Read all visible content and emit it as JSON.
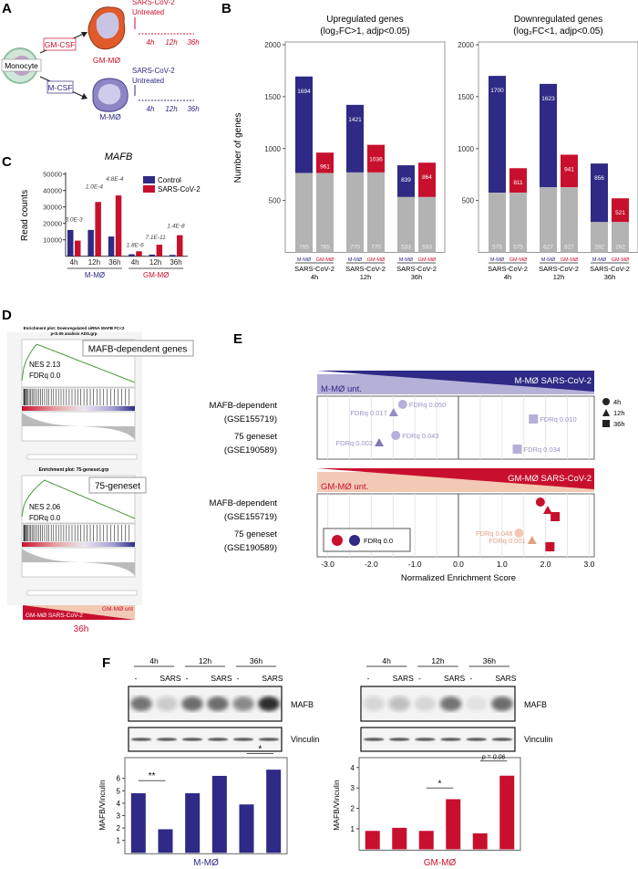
{
  "panel_labels": {
    "a": "A",
    "b": "B",
    "c": "C",
    "d": "D",
    "e": "E",
    "f": "F"
  },
  "colors": {
    "m_mo": "#2e2a85",
    "gm_mo": "#c8102e",
    "shared": "#b3b3b3",
    "m_light": "#b5b0d8",
    "gm_light": "#f2c9b3"
  },
  "panel_a": {
    "monocyte": "Monocyte",
    "gm_csf": "GM-CSF",
    "m_csf": "M-CSF",
    "gm_cell": "GM-MØ",
    "m_cell": "M-MØ",
    "treatment": "SARS-CoV-2",
    "untreated": "Untreated",
    "timepoints": [
      "4h",
      "12h",
      "36h"
    ]
  },
  "panel_d": {
    "plot1": {
      "title_line1": "Enrichment plot: Downregulated siRNA MAFB FC<2",
      "title_line2": "p<0.05 analisis ADS.grp",
      "box_label": "MAFB-dependent genes",
      "nes": "NES  2.13",
      "fdr": "FDRq 0.0"
    },
    "plot2": {
      "title_line1": "Enrichment plot: 75-geneset.grp",
      "box_label": "75-geneset",
      "nes": "NES  2.06",
      "fdr": "FDRq 0.0"
    },
    "gradient_left": "GM-MØ SARS-CoV-2",
    "gradient_right": "GM-MØ unt",
    "timepoint": "36h"
  },
  "chart_data": [
    {
      "id": "c",
      "type": "bar",
      "title": "MAFB",
      "ylabel": "Read counts",
      "ylim": [
        0,
        50000
      ],
      "yticks": [
        "10000",
        "20000",
        "30000",
        "40000",
        "50000"
      ],
      "groups": [
        {
          "cell": "M-MØ",
          "timepoints": [
            "4h",
            "12h",
            "36h"
          ]
        },
        {
          "cell": "GM-MØ",
          "timepoints": [
            "4h",
            "12h",
            "36h"
          ]
        }
      ],
      "series": [
        {
          "name": "Control",
          "color": "#2e2a85",
          "values": [
            16000,
            16000,
            12000,
            1200,
            1000,
            800
          ]
        },
        {
          "name": "SARS-CoV-2",
          "color": "#c8102e",
          "values": [
            9500,
            33000,
            37000,
            3000,
            7000,
            12800
          ]
        }
      ],
      "annotations": [
        "3.0E-3",
        "1.0E-4",
        "4.8E-4",
        "1.8E-6",
        "7.1E-11",
        "1.4E-8"
      ],
      "legend": "top-right"
    },
    {
      "id": "b_up",
      "type": "bar",
      "stacked": true,
      "title_line1": "Upregulated genes",
      "title_line2": "(log₂FC>1, adjp<0.05)",
      "ylabel": "Number of genes",
      "ylim": [
        0,
        2000
      ],
      "yticks": [
        "500",
        "1000",
        "1500",
        "2000"
      ],
      "categories": [
        "4h",
        "12h",
        "36h"
      ],
      "category_prefix": "SARS-CoV-2",
      "bar_labels": [
        "M-MØ",
        "GM-MØ"
      ],
      "m_mo_total": [
        1694,
        1421,
        839
      ],
      "gm_mo_total": [
        961,
        1036,
        864
      ],
      "shared": [
        765,
        770,
        533
      ]
    },
    {
      "id": "b_down",
      "type": "bar",
      "stacked": true,
      "title_line1": "Downregulated genes",
      "title_line2": "(log₂FC<1, adjp<0.05)",
      "ylim": [
        0,
        2000
      ],
      "yticks": [
        "500",
        "1000",
        "1500",
        "2000"
      ],
      "categories": [
        "4h",
        "12h",
        "36h"
      ],
      "category_prefix": "SARS-CoV-2",
      "bar_labels": [
        "M-MØ",
        "GM-MØ"
      ],
      "m_mo_total": [
        1700,
        1623,
        856
      ],
      "gm_mo_total": [
        811,
        941,
        521
      ],
      "shared": [
        575,
        627,
        292
      ]
    },
    {
      "id": "e",
      "type": "scatter",
      "xlabel": "Normalized Enrichment Score",
      "xlim": [
        -3.0,
        3.0
      ],
      "xticks": [
        "-3.0",
        "-2.0",
        "-1.0",
        "0.0",
        "1.0",
        "2.0",
        "3.0"
      ],
      "row_labels": [
        [
          "MAFB-dependent",
          "(GSE155719)"
        ],
        [
          "75 geneset",
          "(GSE190589)"
        ]
      ],
      "legend_shapes": [
        {
          "shape": "circle",
          "label": "4h"
        },
        {
          "shape": "triangle",
          "label": "12h"
        },
        {
          "shape": "square",
          "label": "36h"
        }
      ],
      "fdr_legend": "FDRq  0.0",
      "panels": [
        {
          "banner_left": "M-MØ unt.",
          "banner_right": "M-MØ SARS-CoV-2",
          "points": [
            {
              "row": 0,
              "time": "4h",
              "shape": "circle",
              "nes": -1.28,
              "fdr": "FDRq  0.050",
              "color": "#b5b0d8"
            },
            {
              "row": 0,
              "time": "12h",
              "shape": "triangle",
              "nes": -1.49,
              "fdr": "FDRq  0.017",
              "color": "#928cc4"
            },
            {
              "row": 0,
              "time": "36h",
              "shape": "square",
              "nes": 1.72,
              "fdr": "FDRq  0.010",
              "color": "#b5b0d8"
            },
            {
              "row": 1,
              "time": "4h",
              "shape": "circle",
              "nes": -1.44,
              "fdr": "FDRq  0.043",
              "color": "#b5b0d8"
            },
            {
              "row": 1,
              "time": "12h",
              "shape": "triangle",
              "nes": -1.82,
              "fdr": "FDRq  0.002",
              "color": "#7f79b6"
            },
            {
              "row": 1,
              "time": "36h",
              "shape": "square",
              "nes": 1.35,
              "fdr": "FDRq  0.034",
              "color": "#b5b0d8"
            }
          ]
        },
        {
          "banner_left": "GM-MØ unt.",
          "banner_right": "GM-MØ SARS-CoV-2",
          "points": [
            {
              "row": 0,
              "time": "4h",
              "shape": "circle",
              "nes": 1.88,
              "fdr": "",
              "color": "#c8102e"
            },
            {
              "row": 0,
              "time": "12h",
              "shape": "triangle",
              "nes": 2.05,
              "fdr": "",
              "color": "#c8102e"
            },
            {
              "row": 0,
              "time": "36h",
              "shape": "square",
              "nes": 2.22,
              "fdr": "",
              "color": "#c8102e"
            },
            {
              "row": 1,
              "time": "4h",
              "shape": "circle",
              "nes": 1.39,
              "fdr": "FDRq  0.048",
              "color": "#f2c9b3"
            },
            {
              "row": 1,
              "time": "12h",
              "shape": "triangle",
              "nes": 1.69,
              "fdr": "FDRq  0.001",
              "color": "#e2a283"
            },
            {
              "row": 1,
              "time": "36h",
              "shape": "square",
              "nes": 2.1,
              "fdr": "",
              "color": "#c8102e"
            }
          ]
        }
      ]
    },
    {
      "id": "f_left",
      "type": "bar",
      "cell": "M-MØ",
      "ylabel": "MAFB/Vinculin",
      "ylim": [
        0,
        7
      ],
      "yticks": [
        "1",
        "2",
        "3",
        "4",
        "5",
        "6"
      ],
      "timepoints": [
        "4h",
        "12h",
        "36h"
      ],
      "lanes": [
        "-",
        "SARS",
        "-",
        "SARS",
        "-",
        "SARS"
      ],
      "blot_labels": [
        "MAFB",
        "Vinculin"
      ],
      "values": [
        4.8,
        1.9,
        4.8,
        6.2,
        3.9,
        6.7
      ],
      "mafb_band_intensity": [
        0.6,
        0.2,
        0.65,
        0.65,
        0.5,
        0.95
      ],
      "significance": [
        {
          "pair": 0,
          "label": "**"
        },
        {
          "pair": 2,
          "label": "*"
        }
      ],
      "color": "#2e2a85"
    },
    {
      "id": "f_right",
      "type": "bar",
      "cell": "GM-MØ",
      "ylabel": "MAFB/Vinculin",
      "ylim": [
        0,
        4.3
      ],
      "yticks": [
        "1",
        "2",
        "3",
        "4"
      ],
      "timepoints": [
        "4h",
        "12h",
        "36h"
      ],
      "lanes": [
        "-",
        "SARS",
        "-",
        "SARS",
        "-",
        "SARS"
      ],
      "blot_labels": [
        "MAFB",
        "Vinculin"
      ],
      "values": [
        0.9,
        1.05,
        0.9,
        2.45,
        0.78,
        3.6
      ],
      "mafb_band_intensity": [
        0.15,
        0.25,
        0.12,
        0.6,
        0.08,
        0.65
      ],
      "significance": [
        {
          "pair": 1,
          "label": "*"
        },
        {
          "pair": 2,
          "label": "p = 0.06"
        }
      ],
      "color": "#c8102e"
    }
  ]
}
